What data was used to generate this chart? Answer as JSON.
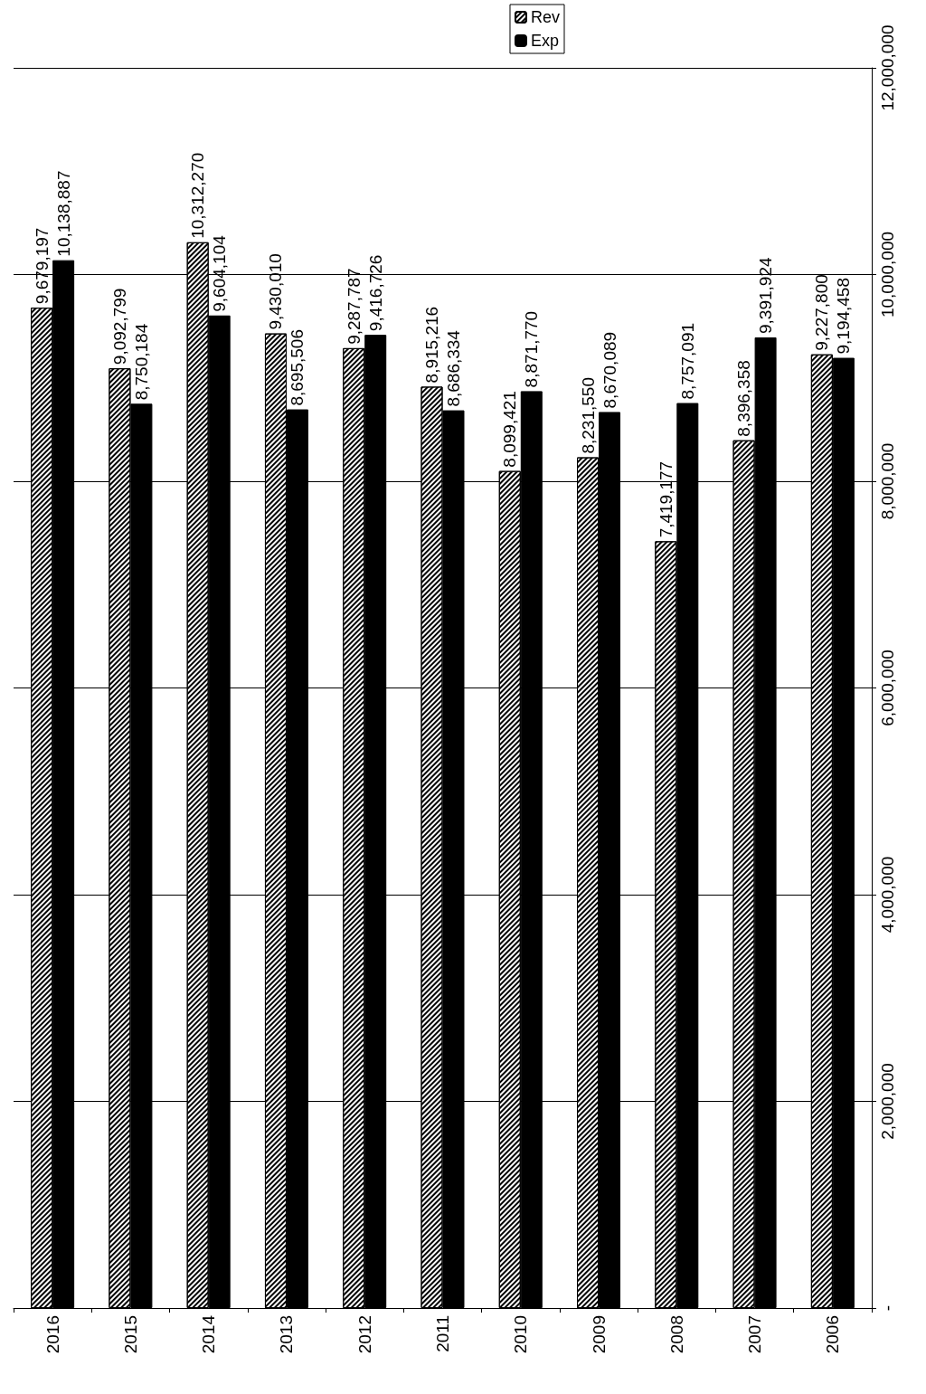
{
  "chart_data": {
    "type": "bar",
    "categories": [
      "2016",
      "2015",
      "2014",
      "2013",
      "2012",
      "2011",
      "2010",
      "2009",
      "2008",
      "2007",
      "2006"
    ],
    "series": [
      {
        "name": "Rev",
        "color": "#ffffff",
        "values": [
          9679197,
          9092799,
          10312270,
          9430010,
          9287787,
          8915216,
          8099421,
          8231550,
          7419177,
          8396358,
          9227800
        ],
        "value_labels": [
          "9,679,197",
          "9,092,799",
          "10,312,270",
          "9,430,010",
          "9,287,787",
          "8,915,216",
          "8,099,421",
          "8,231,550",
          "7,419,177",
          "8,396,358",
          "9,227,800"
        ]
      },
      {
        "name": "Exp",
        "color": "#000000",
        "values": [
          10138887,
          8750184,
          9604104,
          8695506,
          9416726,
          8686334,
          8871770,
          8670089,
          8757091,
          9391924,
          9194458
        ],
        "value_labels": [
          "10,138,887",
          "8,750,184",
          "9,604,104",
          "8,695,506",
          "9,416,726",
          "8,686,334",
          "8,871,770",
          "8,670,089",
          "8,757,091",
          "9,391,924",
          "9,194,458"
        ]
      }
    ],
    "ylim": [
      0,
      12000000
    ],
    "yticks": [
      {
        "value": 0,
        "label": "-"
      },
      {
        "value": 2000000,
        "label": "2,000,000"
      },
      {
        "value": 4000000,
        "label": "4,000,000"
      },
      {
        "value": 6000000,
        "label": "6,000,000"
      },
      {
        "value": 8000000,
        "label": "8,000,000"
      },
      {
        "value": 10000000,
        "label": "10,000,000"
      },
      {
        "value": 12000000,
        "label": "12,000,000"
      }
    ],
    "grid": "y",
    "legend": "top right"
  }
}
